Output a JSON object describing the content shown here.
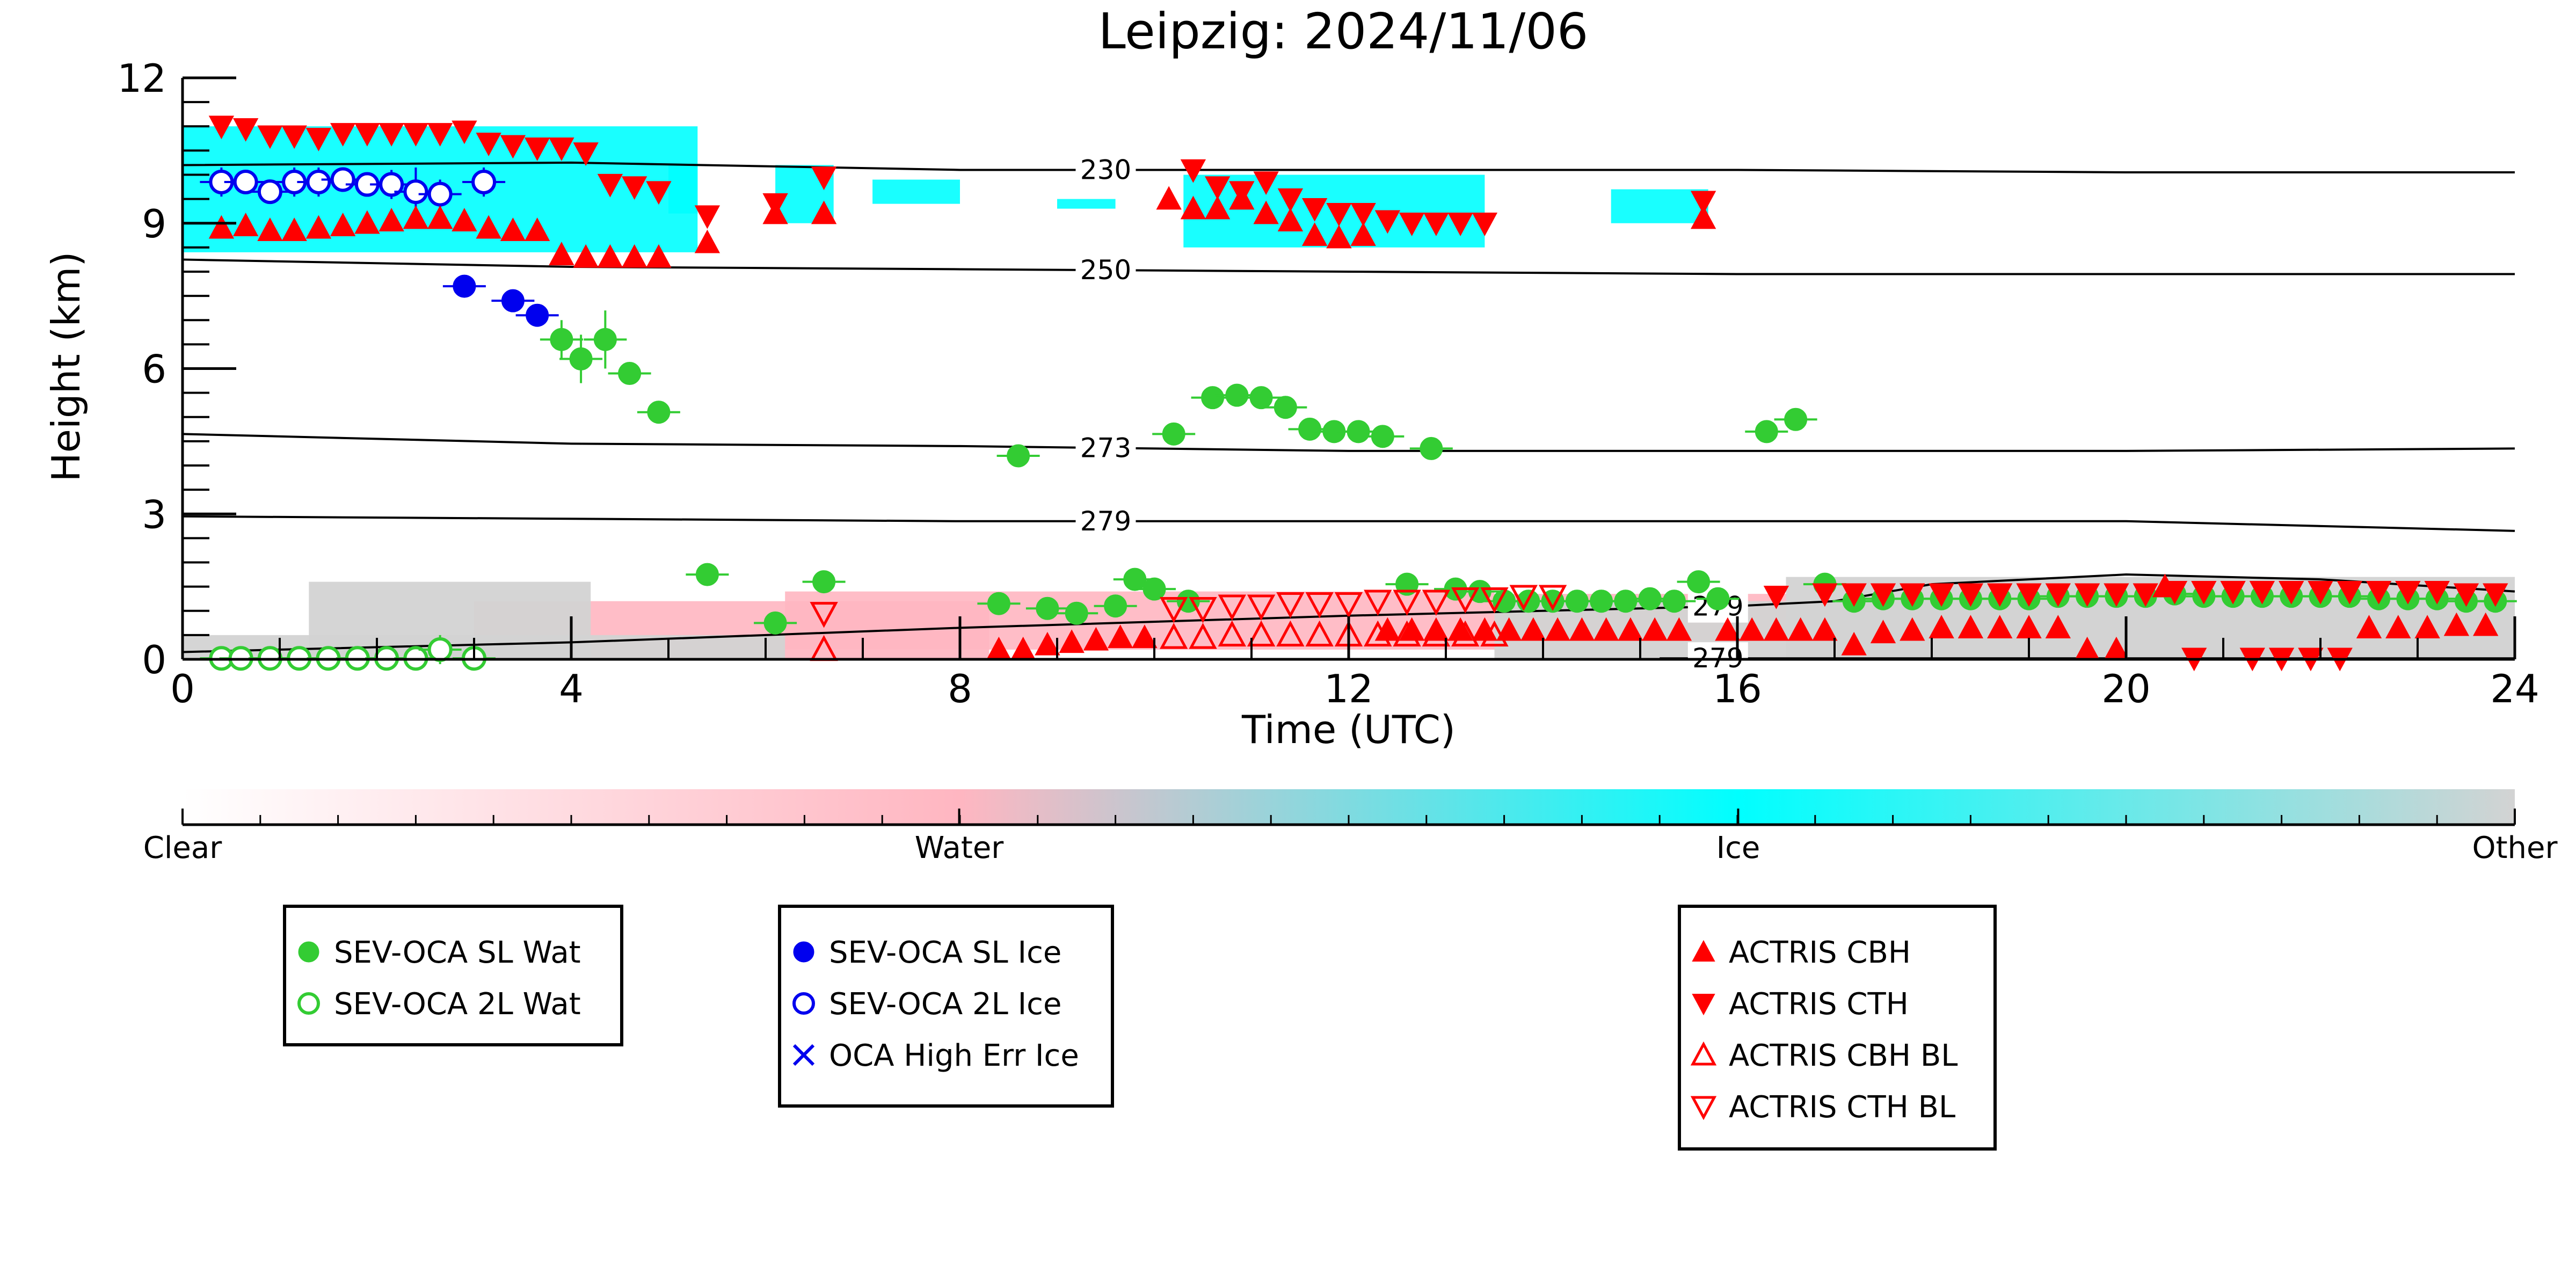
{
  "chart_data": {
    "type": "scatter",
    "title": "Leipzig: 2024/11/06",
    "xlabel": "Time (UTC)",
    "ylabel": "Height (km)",
    "xlim": [
      0,
      24
    ],
    "ylim": [
      0,
      12
    ],
    "xticks": [
      "0",
      "4",
      "8",
      "12",
      "16",
      "20",
      "24"
    ],
    "yticks": [
      "0",
      "3",
      "6",
      "9",
      "12"
    ],
    "grid": false,
    "colors": {
      "sl_wat": "#33cc33",
      "l2_wat": "#33cc33",
      "sl_ice": "#0000ee",
      "l2_ice": "#0000ee",
      "actris": "#ff0000",
      "ice_class": "#00ffff",
      "water_class": "#ffb6c1",
      "other_class": "#d3d3d3"
    },
    "contours": [
      {
        "label": "230",
        "label_x": 9.5,
        "points": [
          [
            0,
            10.2
          ],
          [
            4,
            10.25
          ],
          [
            8,
            10.1
          ],
          [
            12,
            10.1
          ],
          [
            16,
            10.1
          ],
          [
            20,
            10.05
          ],
          [
            24,
            10.05
          ]
        ]
      },
      {
        "label": "250",
        "label_x": 9.5,
        "points": [
          [
            0,
            8.25
          ],
          [
            4,
            8.1
          ],
          [
            8,
            8.05
          ],
          [
            12,
            8.0
          ],
          [
            16,
            7.95
          ],
          [
            20,
            7.95
          ],
          [
            24,
            7.95
          ]
        ]
      },
      {
        "label": "273",
        "label_x": 9.5,
        "points": [
          [
            0,
            4.65
          ],
          [
            4,
            4.45
          ],
          [
            8,
            4.4
          ],
          [
            12,
            4.3
          ],
          [
            16,
            4.3
          ],
          [
            20,
            4.3
          ],
          [
            24,
            4.35
          ]
        ]
      },
      {
        "label": "279",
        "label_x": 9.5,
        "points": [
          [
            0,
            2.95
          ],
          [
            4,
            2.9
          ],
          [
            8,
            2.85
          ],
          [
            12,
            2.85
          ],
          [
            16,
            2.85
          ],
          [
            20,
            2.85
          ],
          [
            24,
            2.65
          ]
        ]
      },
      {
        "label": "279",
        "label_x": 15.8,
        "points": [
          [
            0,
            0.15
          ],
          [
            4,
            0.35
          ],
          [
            8,
            0.65
          ],
          [
            12,
            0.9
          ],
          [
            16,
            1.1
          ],
          [
            17,
            1.2
          ],
          [
            18,
            1.55
          ],
          [
            20,
            1.75
          ],
          [
            22,
            1.65
          ],
          [
            24,
            1.4
          ]
        ]
      },
      {
        "label": "279",
        "label_x": 15.8,
        "points": [
          [
            15.2,
            0.02
          ],
          [
            16.5,
            0.02
          ],
          [
            20,
            0.02
          ],
          [
            24,
            0.02
          ]
        ]
      }
    ],
    "classification": [
      {
        "class": "Ice",
        "x0": 0.0,
        "x1": 5.3,
        "y0": 8.4,
        "y1": 11.0
      },
      {
        "class": "Ice",
        "x0": 5.0,
        "x1": 5.3,
        "y0": 9.2,
        "y1": 10.2
      },
      {
        "class": "Ice",
        "x0": 6.1,
        "x1": 6.7,
        "y0": 9.0,
        "y1": 10.2
      },
      {
        "class": "Ice",
        "x0": 7.1,
        "x1": 8.0,
        "y0": 9.4,
        "y1": 9.9
      },
      {
        "class": "Ice",
        "x0": 9.0,
        "x1": 9.6,
        "y0": 9.3,
        "y1": 9.5
      },
      {
        "class": "Ice",
        "x0": 10.3,
        "x1": 13.4,
        "y0": 8.5,
        "y1": 10.0
      },
      {
        "class": "Ice",
        "x0": 14.7,
        "x1": 15.7,
        "y0": 9.0,
        "y1": 9.7
      },
      {
        "class": "Water",
        "x0": 3.0,
        "x1": 8.3,
        "y0": 0.0,
        "y1": 1.2
      },
      {
        "class": "Water",
        "x0": 6.2,
        "x1": 13.5,
        "y0": 0.2,
        "y1": 1.4
      },
      {
        "class": "Water",
        "x0": 13.5,
        "x1": 16.5,
        "y0": 0.4,
        "y1": 1.35
      },
      {
        "class": "Other",
        "x0": 0.0,
        "x1": 6.2,
        "y0": 0.0,
        "y1": 0.5
      },
      {
        "class": "Other",
        "x0": 1.3,
        "x1": 4.2,
        "y0": 0.0,
        "y1": 1.6
      },
      {
        "class": "Other",
        "x0": 13.5,
        "x1": 24.0,
        "y0": 0.0,
        "y1": 1.2
      },
      {
        "class": "Other",
        "x0": 16.5,
        "x1": 24.0,
        "y0": 0.0,
        "y1": 1.7
      }
    ],
    "series": [
      {
        "name": "SEV-OCA SL Wat",
        "marker": "filled-circle",
        "color": "#33cc33",
        "x": [
          3.9,
          4.1,
          4.35,
          4.6,
          4.9,
          5.4,
          6.1,
          6.6,
          8.4,
          8.6,
          8.9,
          9.2,
          9.6,
          9.8,
          10.0,
          10.2,
          10.35,
          10.6,
          10.85,
          11.1,
          11.35,
          11.6,
          11.85,
          12.1,
          12.35,
          12.6,
          12.85,
          13.1,
          13.35,
          13.6,
          13.85,
          14.1,
          14.35,
          14.6,
          14.85,
          15.1,
          15.35,
          15.6,
          15.8,
          16.3,
          16.6,
          16.9,
          17.2,
          17.5,
          17.8,
          18.1,
          18.4,
          18.7,
          19.0,
          19.3,
          19.6,
          19.9,
          20.2,
          20.5,
          20.8,
          21.1,
          21.4,
          21.7,
          22.0,
          22.3,
          22.6,
          22.9,
          23.2,
          23.5,
          23.8
        ],
        "y": [
          6.6,
          6.2,
          6.6,
          5.9,
          5.1,
          1.75,
          0.75,
          1.6,
          1.15,
          4.2,
          1.05,
          0.95,
          1.1,
          1.65,
          1.45,
          4.65,
          1.2,
          5.4,
          5.45,
          5.4,
          5.2,
          4.75,
          4.7,
          4.7,
          4.6,
          1.55,
          4.35,
          1.45,
          1.4,
          1.2,
          1.2,
          1.2,
          1.2,
          1.2,
          1.2,
          1.25,
          1.2,
          1.6,
          1.25,
          4.7,
          4.95,
          1.55,
          1.2,
          1.25,
          1.25,
          1.25,
          1.25,
          1.25,
          1.25,
          1.3,
          1.3,
          1.3,
          1.3,
          1.35,
          1.3,
          1.3,
          1.3,
          1.3,
          1.3,
          1.3,
          1.25,
          1.25,
          1.25,
          1.2,
          1.2
        ],
        "err": [
          0.4,
          0.5,
          0.6,
          0.2,
          0.15,
          0.1,
          0.1,
          0.1,
          0.1,
          0.1,
          0.1,
          0.1,
          0.1,
          0.1,
          0.1,
          0.1,
          0.1,
          0.1,
          0.1,
          0.1,
          0.1,
          0.1,
          0.1,
          0.1,
          0.1,
          0.1,
          0.1,
          0.1,
          0.1,
          0.1,
          0.1,
          0.1,
          0.1,
          0.1,
          0.1,
          0.1,
          0.1,
          0.1,
          0.1,
          0.1,
          0.1,
          0.1,
          0.1,
          0.1,
          0.1,
          0.1,
          0.1,
          0.1,
          0.1,
          0.1,
          0.1,
          0.1,
          0.1,
          0.1,
          0.1,
          0.1,
          0.1,
          0.1,
          0.1,
          0.1,
          0.1,
          0.1,
          0.1,
          0.1,
          0.1
        ]
      },
      {
        "name": "SEV-OCA 2L Wat",
        "marker": "open-circle",
        "color": "#33cc33",
        "x": [
          0.4,
          0.6,
          0.9,
          1.2,
          1.5,
          1.8,
          2.1,
          2.4,
          2.65,
          3.0
        ],
        "y": [
          0.02,
          0.02,
          0.02,
          0.02,
          0.02,
          0.02,
          0.02,
          0.02,
          0.2,
          0.02
        ],
        "err": [
          0.05,
          0.05,
          0.05,
          0.05,
          0.05,
          0.05,
          0.05,
          0.05,
          0.3,
          0.05
        ]
      },
      {
        "name": "SEV-OCA SL Ice",
        "marker": "filled-circle",
        "color": "#0000ee",
        "x": [
          2.9,
          3.4,
          3.65
        ],
        "y": [
          7.7,
          7.4,
          7.1
        ],
        "err": [
          0.2,
          0.2,
          0.2
        ]
      },
      {
        "name": "SEV-OCA 2L Ice",
        "marker": "open-circle",
        "color": "#0000ee",
        "x": [
          0.4,
          0.65,
          0.9,
          1.15,
          1.4,
          1.65,
          1.9,
          2.15,
          2.4,
          2.65,
          3.1
        ],
        "y": [
          9.85,
          9.85,
          9.65,
          9.85,
          9.85,
          9.9,
          9.8,
          9.8,
          9.65,
          9.6,
          9.85
        ],
        "err": [
          0.3,
          0.2,
          0.15,
          0.3,
          0.3,
          0.2,
          0.2,
          0.3,
          0.5,
          0.3,
          0.3
        ]
      },
      {
        "name": "OCA High Err Ice",
        "marker": "x",
        "color": "#0000ee",
        "x": [],
        "y": []
      },
      {
        "name": "ACTRIS CBH",
        "marker": "triangle-up",
        "color": "#ff0000",
        "x": [
          0.4,
          0.65,
          0.9,
          1.15,
          1.4,
          1.65,
          1.9,
          2.15,
          2.4,
          2.65,
          2.9,
          3.15,
          3.4,
          3.65,
          3.9,
          4.15,
          4.4,
          4.65,
          4.9,
          5.4,
          6.1,
          6.6,
          8.4,
          8.65,
          8.9,
          9.15,
          9.4,
          9.65,
          9.9,
          10.15,
          10.4,
          10.65,
          10.9,
          11.15,
          11.4,
          11.65,
          11.9,
          12.15,
          12.4,
          12.65,
          12.9,
          13.15,
          13.4,
          13.65,
          13.9,
          14.15,
          14.4,
          14.65,
          14.9,
          15.15,
          15.4,
          15.65,
          15.9,
          16.15,
          16.4,
          16.65,
          16.9,
          17.2,
          17.5,
          17.8,
          18.1,
          18.4,
          18.7,
          19.0,
          19.3,
          19.6,
          19.9,
          20.4,
          22.5,
          22.8,
          23.1,
          23.4,
          23.7
        ],
        "y": [
          8.9,
          8.95,
          8.85,
          8.85,
          8.9,
          8.95,
          9.0,
          9.05,
          9.1,
          9.1,
          9.05,
          8.9,
          8.85,
          8.85,
          8.35,
          8.3,
          8.3,
          8.3,
          8.3,
          8.6,
          9.2,
          9.2,
          0.2,
          0.2,
          0.3,
          0.35,
          0.4,
          0.45,
          0.45,
          9.5,
          9.3,
          9.3,
          9.5,
          9.2,
          9.05,
          8.75,
          8.7,
          8.75,
          0.6,
          0.6,
          0.6,
          0.6,
          0.6,
          0.6,
          0.6,
          0.6,
          0.6,
          0.6,
          0.6,
          0.6,
          0.6,
          9.1,
          0.6,
          0.6,
          0.6,
          0.6,
          0.6,
          0.3,
          0.55,
          0.6,
          0.65,
          0.65,
          0.65,
          0.65,
          0.65,
          0.2,
          0.2,
          1.5,
          0.65,
          0.65,
          0.65,
          0.7,
          0.7
        ],
        "notes": []
      },
      {
        "name": "ACTRIS CTH",
        "marker": "triangle-down",
        "color": "#ff0000",
        "x": [
          0.4,
          0.65,
          0.9,
          1.15,
          1.4,
          1.65,
          1.9,
          2.15,
          2.4,
          2.65,
          2.9,
          3.15,
          3.4,
          3.65,
          3.9,
          4.15,
          4.4,
          4.65,
          4.9,
          5.4,
          6.1,
          6.6,
          10.4,
          10.65,
          10.9,
          11.15,
          11.4,
          11.65,
          11.9,
          12.15,
          12.4,
          12.65,
          12.9,
          13.15,
          13.4,
          15.65,
          16.4,
          16.9,
          17.2,
          17.5,
          17.8,
          18.1,
          18.4,
          18.7,
          19.0,
          19.3,
          19.6,
          19.9,
          20.2,
          20.5,
          20.8,
          21.1,
          21.4,
          21.7,
          22.0,
          22.3,
          22.6,
          22.9,
          23.2,
          23.5,
          23.8,
          20.7,
          21.3,
          21.6,
          21.9,
          22.2
        ],
        "y": [
          11.0,
          10.95,
          10.8,
          10.8,
          10.75,
          10.85,
          10.85,
          10.85,
          10.85,
          10.85,
          10.9,
          10.65,
          10.6,
          10.55,
          10.55,
          10.45,
          9.8,
          9.75,
          9.65,
          9.15,
          9.4,
          9.95,
          10.1,
          9.75,
          9.65,
          9.85,
          9.5,
          9.3,
          9.2,
          9.2,
          9.05,
          9.0,
          9.0,
          9.0,
          9.0,
          9.45,
          1.3,
          1.35,
          1.35,
          1.35,
          1.35,
          1.35,
          1.35,
          1.35,
          1.35,
          1.35,
          1.35,
          1.35,
          1.35,
          1.4,
          1.4,
          1.4,
          1.4,
          1.4,
          1.4,
          1.4,
          1.4,
          1.4,
          1.4,
          1.35,
          1.35,
          0.02,
          0.02,
          0.02,
          0.02,
          0.02
        ]
      },
      {
        "name": "ACTRIS CBH BL",
        "marker": "open-triangle-up",
        "color": "#ff0000",
        "x": [
          6.6,
          10.2,
          10.5,
          10.8,
          11.1,
          11.4,
          11.7,
          12.0,
          12.3,
          12.6,
          12.9,
          13.2,
          13.5
        ],
        "y": [
          0.2,
          0.45,
          0.45,
          0.5,
          0.5,
          0.5,
          0.5,
          0.5,
          0.5,
          0.5,
          0.5,
          0.5,
          0.5
        ]
      },
      {
        "name": "ACTRIS CTH BL",
        "marker": "open-triangle-down",
        "color": "#ff0000",
        "x": [
          6.6,
          10.2,
          10.5,
          10.8,
          11.1,
          11.4,
          11.7,
          12.0,
          12.3,
          12.6,
          12.9,
          13.2,
          13.5,
          13.8,
          14.1
        ],
        "y": [
          0.95,
          1.05,
          1.05,
          1.1,
          1.1,
          1.15,
          1.15,
          1.15,
          1.2,
          1.2,
          1.2,
          1.25,
          1.25,
          1.3,
          1.3
        ]
      }
    ],
    "colorbar": {
      "labels": [
        "Clear",
        "Water",
        "Ice",
        "Other"
      ],
      "label_positions": [
        0,
        0.333,
        0.667,
        1.0
      ]
    },
    "legends": [
      {
        "entries": [
          "SEV-OCA SL Wat",
          "SEV-OCA 2L Wat"
        ]
      },
      {
        "entries": [
          "SEV-OCA SL Ice",
          "SEV-OCA 2L Ice",
          "OCA High Err Ice"
        ]
      },
      {
        "entries": [
          "ACTRIS CBH",
          "ACTRIS CTH",
          "ACTRIS CBH BL",
          "ACTRIS CTH BL"
        ]
      }
    ]
  }
}
